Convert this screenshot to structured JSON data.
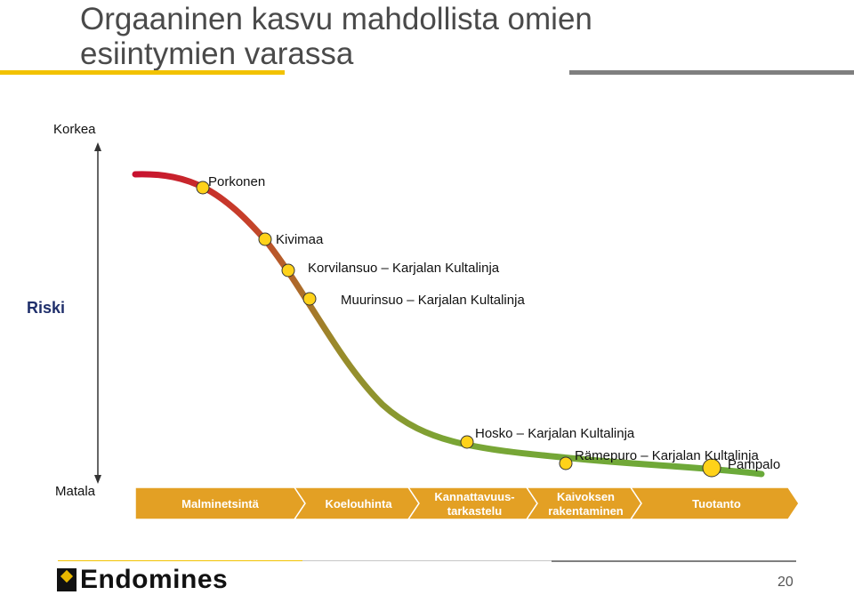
{
  "title": "Orgaaninen kasvu mahdollista omien esiintymien varassa",
  "axis": {
    "high": "Korkea",
    "low": "Matala",
    "label": "Riski"
  },
  "points": [
    {
      "label": "Porkonen"
    },
    {
      "label": "Kivimaa"
    },
    {
      "label": "Korvilansuo – Karjalan Kultalinja"
    },
    {
      "label": "Muurinsuo – Karjalan Kultalinja"
    },
    {
      "label": "Hosko – Karjalan Kultalinja"
    },
    {
      "label": "Rämepuro – Karjalan Kultalinja"
    },
    {
      "label": "Pampalo"
    }
  ],
  "stages": [
    {
      "label": "Malminetsintä"
    },
    {
      "label": "Koelouhinta"
    },
    {
      "label": "Kannattavuus-\ntarkastelu"
    },
    {
      "label": "Kaivoksen\nrakentaminen"
    },
    {
      "label": "Tuotanto"
    }
  ],
  "footer": {
    "logo_text": "Endomines",
    "page_number": "20"
  },
  "colors": {
    "curve_start": "#c8102e",
    "curve_mid": "#8a9a2a",
    "curve_end": "#6aaa3a",
    "point_fill": "#ffd21a",
    "stage_fill": "#e3a024",
    "accent": "#f2c200"
  }
}
